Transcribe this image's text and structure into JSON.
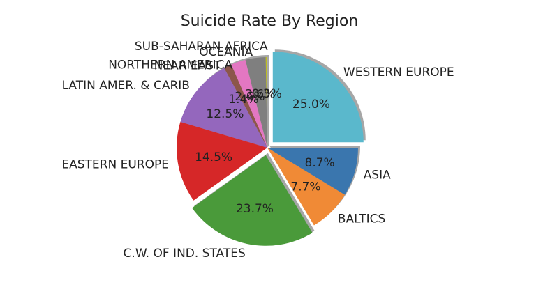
{
  "chart_data": {
    "type": "pie",
    "title": "Suicide Rate By Region",
    "slices": [
      {
        "label": "WESTERN EUROPE",
        "value": 25.0,
        "pct_label": "25.0%",
        "color": "#5ab8cc",
        "exploded": true
      },
      {
        "label": "SUB-SAHARAN AFRICA",
        "value": 0.3,
        "pct_label": "0.3%",
        "color": "#bcbd22",
        "exploded": false
      },
      {
        "label": "OCEANIA",
        "value": 3.6,
        "pct_label": "3.6%",
        "color": "#7f7f7f",
        "exploded": false
      },
      {
        "label": "NORTHERN AMERICA",
        "value": 2.6,
        "pct_label": "2.6%",
        "color": "#e377c2",
        "exploded": false
      },
      {
        "label": "NEAR EAST",
        "value": 1.4,
        "pct_label": "1.4%",
        "color": "#8c564b",
        "exploded": false
      },
      {
        "label": "LATIN AMER. & CARIB",
        "value": 12.5,
        "pct_label": "12.5%",
        "color": "#9467bd",
        "exploded": false
      },
      {
        "label": "EASTERN EUROPE",
        "value": 14.5,
        "pct_label": "14.5%",
        "color": "#d62728",
        "exploded": false
      },
      {
        "label": "C.W. OF IND. STATES",
        "value": 23.7,
        "pct_label": "23.7%",
        "color": "#4a9a3a",
        "exploded": true
      },
      {
        "label": "BALTICS",
        "value": 7.7,
        "pct_label": "7.7%",
        "color": "#f08a36",
        "exploded": false
      },
      {
        "label": "ASIA",
        "value": 8.7,
        "pct_label": "8.7%",
        "color": "#3a76ae",
        "exploded": false
      }
    ],
    "start_angle_deg": 0,
    "direction": "counterclockwise",
    "shadow": true,
    "legend": "none"
  }
}
